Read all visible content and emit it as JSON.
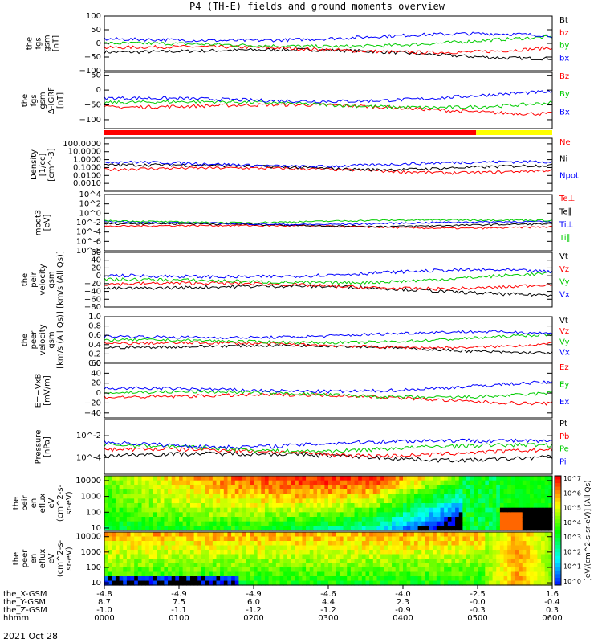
{
  "title": "P4 (TH-E) fields and ground moments overview",
  "date_label": "2021 Oct 28",
  "colorbar_units": "[eV/(cm^2-s-sr-eV)] (All Qs)",
  "colorbar_ticks": [
    "10^7",
    "10^6",
    "10^5",
    "10^4",
    "10^3",
    "10^2",
    "10^1",
    "10^0"
  ],
  "mode_bar": {
    "colors": [
      "#ff0000",
      "#ffff00"
    ],
    "switch_time": 0.83
  },
  "time_axis": {
    "hhmm": [
      "0000",
      "0100",
      "0200",
      "0300",
      "0400",
      "0500",
      "0600"
    ],
    "rows": [
      {
        "label": "the_X-GSM",
        "values": [
          "-4.8",
          "-4.9",
          "-4.9",
          "-4.6",
          "-4.0",
          "-2.5",
          "1.6"
        ]
      },
      {
        "label": "the_Y-GSM",
        "values": [
          "8.7",
          "7.5",
          "6.0",
          "4.4",
          "2.3",
          "-0.0",
          "-0.4"
        ]
      },
      {
        "label": "the_Z-GSM",
        "values": [
          "-1.0",
          "-1.1",
          "-1.2",
          "-1.2",
          "-0.9",
          "-0.3",
          "0.3"
        ]
      },
      {
        "label": "hhmm",
        "values": [
          "0000",
          "0100",
          "0200",
          "0300",
          "0400",
          "0500",
          "0600"
        ]
      }
    ]
  },
  "chart_data": [
    {
      "type": "line",
      "ylabel": [
        "the",
        "fgs",
        "gsm",
        "[nT]"
      ],
      "yscale": "linear",
      "ylim": [
        -100,
        100
      ],
      "ticks": [
        {
          "v": 100,
          "l": "100"
        },
        {
          "v": 50,
          "l": "50"
        },
        {
          "v": 0,
          "l": "0"
        },
        {
          "v": -50,
          "l": "−50"
        },
        {
          "v": -100,
          "l": "−100"
        }
      ],
      "legend": [
        {
          "text": "Bt",
          "color": "#000000"
        },
        {
          "text": "bz",
          "color": "#ff0000"
        },
        {
          "text": "by",
          "color": "#00cc00"
        },
        {
          "text": "bx",
          "color": "#0000ff"
        }
      ]
    },
    {
      "type": "line",
      "ylabel": [
        "the",
        "fgs",
        "gsm",
        "Δ-IGRF",
        "[nT]"
      ],
      "yscale": "linear",
      "ylim": [
        -130,
        60
      ],
      "ticks": [
        {
          "v": 50,
          "l": "50"
        },
        {
          "v": 0,
          "l": "0"
        },
        {
          "v": -50,
          "l": "−50"
        },
        {
          "v": -100,
          "l": "−100"
        }
      ],
      "legend": [
        {
          "text": "Bz",
          "color": "#ff0000"
        },
        {
          "text": "By",
          "color": "#00cc00"
        },
        {
          "text": "Bx",
          "color": "#0000ff"
        }
      ]
    },
    {
      "type": "line",
      "ylabel": [
        "Density",
        "[1/cc]",
        "[cm^-3]"
      ],
      "yscale": "log",
      "ylim": [
        0.0001,
        500
      ],
      "ticks": [
        {
          "v": 100,
          "l": "100.0000"
        },
        {
          "v": 10,
          "l": "10.0000"
        },
        {
          "v": 1,
          "l": "1.0000"
        },
        {
          "v": 0.1,
          "l": "0.1000"
        },
        {
          "v": 0.01,
          "l": "0.0100"
        },
        {
          "v": 0.001,
          "l": "0.0010"
        }
      ],
      "legend": [
        {
          "text": "Ne",
          "color": "#ff0000"
        },
        {
          "text": "Ni",
          "color": "#000000"
        },
        {
          "text": "Npot",
          "color": "#0000ff"
        }
      ]
    },
    {
      "type": "line",
      "ylabel": [
        "moqt3",
        "[eV]"
      ],
      "yscale": "log",
      "ylim": [
        1e-08,
        10000
      ],
      "ticks": [
        {
          "v": 10000,
          "l": "10^4"
        },
        {
          "v": 100,
          "l": "10^2"
        },
        {
          "v": 1,
          "l": "10^0"
        },
        {
          "v": 0.01,
          "l": "10^-2"
        },
        {
          "v": 0.0001,
          "l": "10^-4"
        },
        {
          "v": 1e-06,
          "l": "10^-6"
        },
        {
          "v": 1e-08,
          "l": "10^-8"
        }
      ],
      "legend": [
        {
          "text": "Te⊥",
          "color": "#ff0000"
        },
        {
          "text": "Te∥",
          "color": "#000000"
        },
        {
          "text": "Ti⊥",
          "color": "#0000ff"
        },
        {
          "text": "Ti∥",
          "color": "#00cc00"
        }
      ]
    },
    {
      "type": "line",
      "ylabel": [
        "the",
        "peir",
        "velocity",
        "gsm",
        "[km/s (All Qs)]"
      ],
      "yscale": "linear",
      "ylim": [
        -80,
        60
      ],
      "ticks": [
        {
          "v": 60,
          "l": "60"
        },
        {
          "v": 40,
          "l": "40"
        },
        {
          "v": 20,
          "l": "20"
        },
        {
          "v": 0,
          "l": "0"
        },
        {
          "v": -20,
          "l": "−20"
        },
        {
          "v": -40,
          "l": "−40"
        },
        {
          "v": -60,
          "l": "−60"
        },
        {
          "v": -80,
          "l": "−80"
        }
      ],
      "legend": [
        {
          "text": "Vt",
          "color": "#000000"
        },
        {
          "text": "Vz",
          "color": "#ff0000"
        },
        {
          "text": "Vy",
          "color": "#00cc00"
        },
        {
          "text": "Vx",
          "color": "#0000ff"
        }
      ]
    },
    {
      "type": "line",
      "ylabel": [
        "the",
        "peer",
        "velocity",
        "gsm",
        "[km/s (All Qs)]"
      ],
      "yscale": "linear",
      "ylim": [
        0,
        1
      ],
      "ticks": [
        {
          "v": 1,
          "l": "1.0"
        },
        {
          "v": 0.8,
          "l": "0.8"
        },
        {
          "v": 0.6,
          "l": "0.6"
        },
        {
          "v": 0.4,
          "l": "0.4"
        },
        {
          "v": 0.2,
          "l": "0.2"
        },
        {
          "v": 0,
          "l": "0.0"
        }
      ],
      "legend": [
        {
          "text": "Vt",
          "color": "#000000"
        },
        {
          "text": "Vz",
          "color": "#ff0000"
        },
        {
          "text": "Vy",
          "color": "#00cc00"
        },
        {
          "text": "Vx",
          "color": "#0000ff"
        }
      ]
    },
    {
      "type": "line",
      "ylabel": [
        "E=−VxB",
        "[mV/m]"
      ],
      "yscale": "linear",
      "ylim": [
        -50,
        60
      ],
      "ticks": [
        {
          "v": 60,
          "l": "60"
        },
        {
          "v": 40,
          "l": "40"
        },
        {
          "v": 20,
          "l": "20"
        },
        {
          "v": 0,
          "l": "0"
        },
        {
          "v": -20,
          "l": "−20"
        },
        {
          "v": -40,
          "l": "−40"
        }
      ],
      "legend": [
        {
          "text": "Ez",
          "color": "#ff0000"
        },
        {
          "text": "Ey",
          "color": "#00cc00"
        },
        {
          "text": "Ex",
          "color": "#0000ff"
        }
      ]
    },
    {
      "type": "line",
      "ylabel": [
        "Pressure",
        "[nPa]"
      ],
      "yscale": "log",
      "ylim": [
        3e-06,
        0.3
      ],
      "ticks": [
        {
          "v": 0.01,
          "l": "10^-2"
        },
        {
          "v": 0.0001,
          "l": "10^-4"
        }
      ],
      "legend": [
        {
          "text": "Pt",
          "color": "#000000"
        },
        {
          "text": "Pb",
          "color": "#ff0000"
        },
        {
          "text": "Pe",
          "color": "#00cc00"
        },
        {
          "text": "Pi",
          "color": "#0000ff"
        }
      ]
    },
    {
      "type": "heatmap",
      "ylabel": [
        "the",
        "peir",
        "en",
        "eflux",
        "eV",
        "(cm^2-s-",
        "sr-eV)"
      ],
      "yscale": "log",
      "ylim": [
        7,
        20000
      ],
      "ticks": [
        {
          "v": 10000,
          "l": "10000"
        },
        {
          "v": 1000,
          "l": "1000"
        },
        {
          "v": 100,
          "l": "100"
        },
        {
          "v": 10,
          "l": "10"
        }
      ]
    },
    {
      "type": "heatmap",
      "ylabel": [
        "the",
        "peer",
        "en",
        "eflux",
        "eV",
        "(cm^2-s-",
        "sr-eV)"
      ],
      "yscale": "log",
      "ylim": [
        7,
        20000
      ],
      "ticks": [
        {
          "v": 10000,
          "l": "10000"
        },
        {
          "v": 1000,
          "l": "1000"
        },
        {
          "v": 100,
          "l": "100"
        },
        {
          "v": 10,
          "l": "10"
        }
      ]
    }
  ]
}
